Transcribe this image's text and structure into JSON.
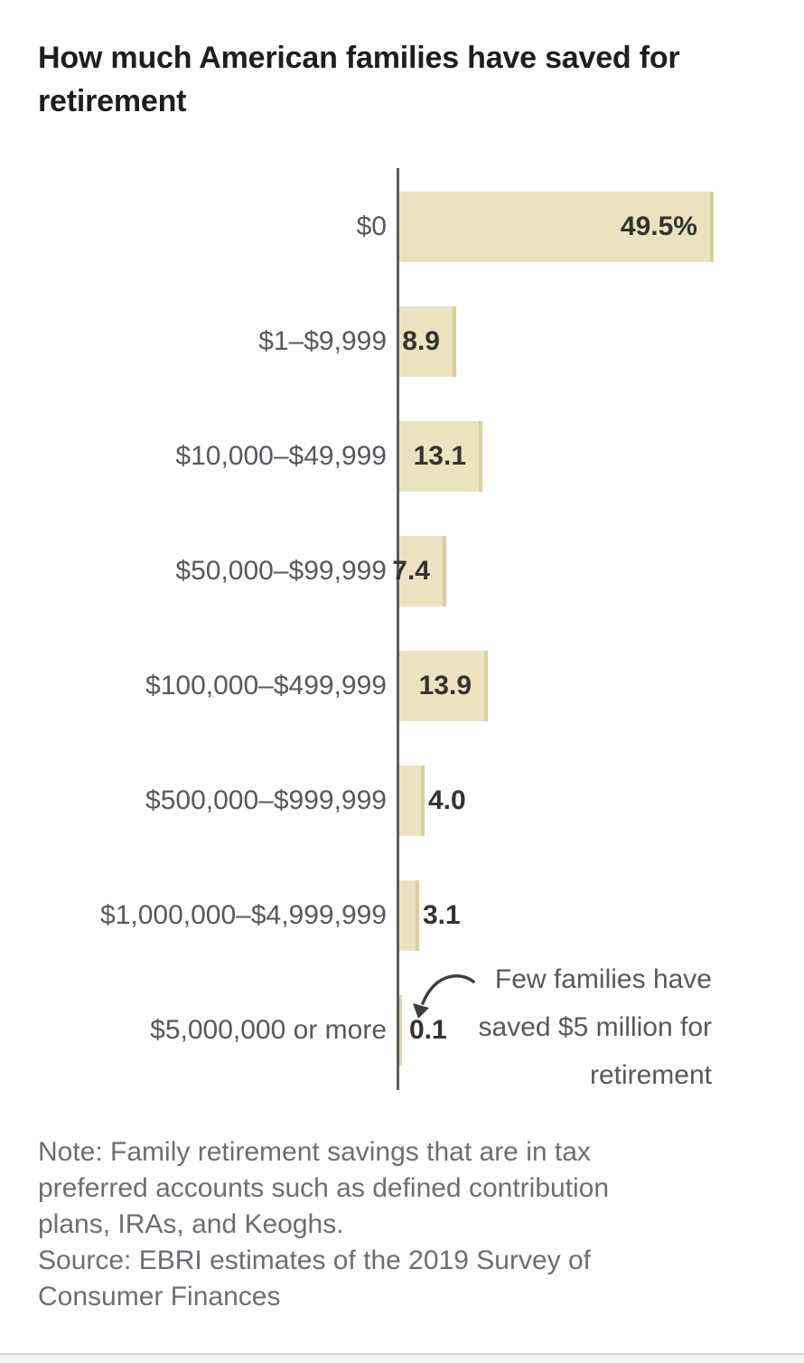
{
  "title": "How much American families have saved for retirement",
  "title_lines": [
    "How much American families have saved for",
    "retirement"
  ],
  "chart_data": {
    "type": "bar",
    "orientation": "horizontal",
    "title": "How much American families have saved for retirement",
    "xlabel": "",
    "ylabel": "",
    "xlim": [
      0,
      52
    ],
    "grid": false,
    "categories": [
      "$0",
      "$1–$9,999",
      "$10,000–$49,999",
      "$50,000–$99,999",
      "$100,000–$499,999",
      "$500,000–$999,999",
      "$1,000,000–$4,999,999",
      "$5,000,000 or more"
    ],
    "values": [
      49.5,
      8.9,
      13.1,
      7.4,
      13.9,
      4.0,
      3.1,
      0.1
    ],
    "value_labels": [
      "49.5%",
      "8.9",
      "13.1",
      "7.4",
      "13.9",
      "4.0",
      "3.1",
      "0.1"
    ],
    "label_inside": [
      true,
      true,
      true,
      true,
      true,
      false,
      false,
      false
    ],
    "bar_color": "#ebe3c0",
    "bar_edge_color": "#d8cfa3",
    "axis_color": "#5c5c5c",
    "annotation": "Few families have saved $5 million for retirement"
  },
  "annotation": {
    "lines": [
      "Few families have",
      "saved $5 million for",
      "retirement"
    ]
  },
  "footer": {
    "lines": [
      "Note: Family retirement savings that are in tax",
      "preferred accounts such as defined contribution",
      "plans, IRAs, and Keoghs.",
      "Source: EBRI estimates of the 2019 Survey of",
      "Consumer Finances"
    ]
  }
}
